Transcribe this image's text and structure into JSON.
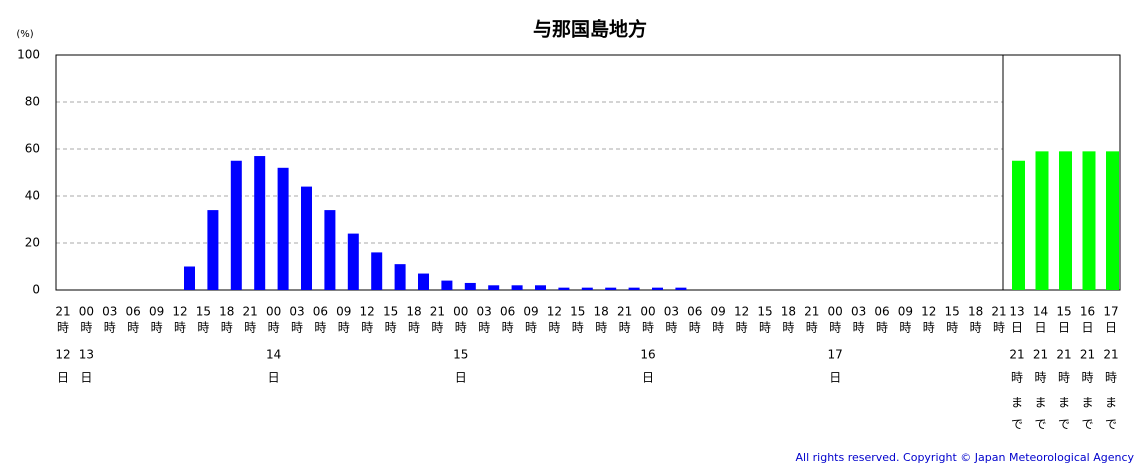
{
  "chart_data": {
    "type": "bar",
    "title": "与那国島地方",
    "y_unit": "(%)",
    "categories": [
      "21時",
      "00時",
      "03時",
      "06時",
      "09時",
      "12時",
      "15時",
      "18時",
      "21時",
      "00時",
      "03時",
      "06時",
      "09時",
      "12時",
      "15時",
      "18時",
      "21時",
      "00時",
      "03時",
      "06時",
      "09時",
      "12時",
      "15時",
      "18時",
      "21時",
      "00時",
      "03時",
      "06時",
      "09時",
      "12時",
      "15時",
      "18時",
      "21時",
      "00時",
      "03時",
      "06時",
      "09時",
      "12時",
      "15時",
      "18時",
      "21時"
    ],
    "days": [
      "12日",
      "13日",
      null,
      null,
      null,
      null,
      null,
      null,
      null,
      "14日",
      null,
      null,
      null,
      null,
      null,
      null,
      null,
      "15日",
      null,
      null,
      null,
      null,
      null,
      null,
      null,
      "16日",
      null,
      null,
      null,
      null,
      null,
      null,
      null,
      "17日",
      null,
      null,
      null,
      null,
      null,
      null,
      null
    ],
    "values": [
      0,
      0,
      0,
      0,
      0,
      10,
      34,
      55,
      57,
      52,
      44,
      34,
      24,
      16,
      11,
      7,
      4,
      3,
      2,
      2,
      2,
      1,
      1,
      1,
      1,
      1,
      1,
      0,
      0,
      0,
      0,
      0,
      0,
      0,
      0,
      0,
      0,
      0,
      0,
      0,
      0
    ],
    "color": "#0000ff",
    "summary_categories": [
      "13日21時まで",
      "14日21時まで",
      "15日21時まで",
      "16日21時まで",
      "17日21時まで"
    ],
    "summary_values": [
      55,
      59,
      59,
      59,
      59
    ],
    "summary_color": "#00ff00",
    "ylim": [
      0,
      100
    ],
    "yticks": [
      0,
      20,
      40,
      60,
      80,
      100
    ],
    "grid": true,
    "copyright": "All rights reserved. Copyright © Japan Meteorological Agency"
  }
}
